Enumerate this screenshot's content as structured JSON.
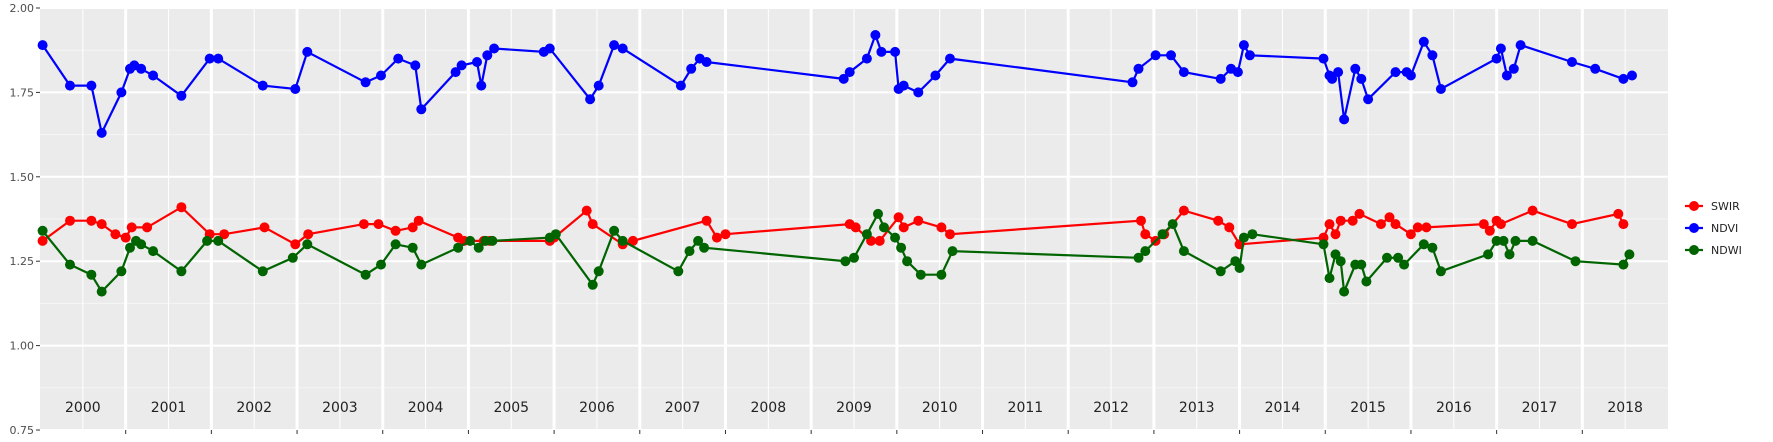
{
  "chart_data": {
    "type": "line",
    "title": "",
    "xlabel": "",
    "ylabel": "",
    "ylim": [
      0.75,
      2.0
    ],
    "yticks": [
      "0.75",
      "1.00",
      "1.25",
      "1.50",
      "1.75",
      "2.00"
    ],
    "grid": true,
    "legend_position": "right",
    "panels": [
      "2000",
      "2001",
      "2002",
      "2003",
      "2004",
      "2005",
      "2006",
      "2007",
      "2008",
      "2009",
      "2010",
      "2011",
      "2012",
      "2013",
      "2014",
      "2015",
      "2016",
      "2017",
      "2018"
    ],
    "series": [
      {
        "name": "SWIR",
        "color": "#ff0000",
        "points": [
          [
            2000.03,
            1.31
          ],
          [
            2000.35,
            1.37
          ],
          [
            2000.6,
            1.37
          ],
          [
            2000.72,
            1.36
          ],
          [
            2000.88,
            1.33
          ],
          [
            2001.0,
            1.32
          ],
          [
            2001.07,
            1.35
          ],
          [
            2001.25,
            1.35
          ],
          [
            2001.65,
            1.41
          ],
          [
            2001.98,
            1.33
          ],
          [
            2002.15,
            1.33
          ],
          [
            2002.62,
            1.35
          ],
          [
            2002.98,
            1.3
          ],
          [
            2003.13,
            1.33
          ],
          [
            2003.78,
            1.36
          ],
          [
            2003.95,
            1.36
          ],
          [
            2004.15,
            1.34
          ],
          [
            2004.35,
            1.35
          ],
          [
            2004.42,
            1.37
          ],
          [
            2004.88,
            1.32
          ],
          [
            2004.95,
            1.31
          ],
          [
            2005.18,
            1.31
          ],
          [
            2005.25,
            1.31
          ],
          [
            2005.95,
            1.31
          ],
          [
            2006.0,
            1.32
          ],
          [
            2006.38,
            1.4
          ],
          [
            2006.45,
            1.36
          ],
          [
            2006.8,
            1.3
          ],
          [
            2006.92,
            1.31
          ],
          [
            2007.78,
            1.37
          ],
          [
            2007.9,
            1.32
          ],
          [
            2008.0,
            1.33
          ],
          [
            2009.45,
            1.36
          ],
          [
            2009.52,
            1.35
          ],
          [
            2009.7,
            1.31
          ],
          [
            2009.8,
            1.31
          ],
          [
            2010.02,
            1.38
          ],
          [
            2010.08,
            1.35
          ],
          [
            2010.25,
            1.37
          ],
          [
            2010.52,
            1.35
          ],
          [
            2010.62,
            1.33
          ],
          [
            2012.85,
            1.37
          ],
          [
            2012.9,
            1.33
          ],
          [
            2013.02,
            1.31
          ],
          [
            2013.12,
            1.33
          ],
          [
            2013.35,
            1.4
          ],
          [
            2013.75,
            1.37
          ],
          [
            2013.88,
            1.35
          ],
          [
            2014.0,
            1.3
          ],
          [
            2014.98,
            1.32
          ],
          [
            2015.05,
            1.36
          ],
          [
            2015.12,
            1.33
          ],
          [
            2015.18,
            1.37
          ],
          [
            2015.32,
            1.37
          ],
          [
            2015.4,
            1.39
          ],
          [
            2015.65,
            1.36
          ],
          [
            2015.75,
            1.38
          ],
          [
            2015.82,
            1.36
          ],
          [
            2016.0,
            1.33
          ],
          [
            2016.08,
            1.35
          ],
          [
            2016.18,
            1.35
          ],
          [
            2016.85,
            1.36
          ],
          [
            2016.92,
            1.34
          ],
          [
            2017.0,
            1.37
          ],
          [
            2017.05,
            1.36
          ],
          [
            2017.42,
            1.4
          ],
          [
            2017.88,
            1.36
          ],
          [
            2018.42,
            1.39
          ],
          [
            2018.48,
            1.36
          ]
        ]
      },
      {
        "name": "NDVI",
        "color": "#0000ff",
        "points": [
          [
            2000.03,
            1.89
          ],
          [
            2000.35,
            1.77
          ],
          [
            2000.6,
            1.77
          ],
          [
            2000.72,
            1.63
          ],
          [
            2000.95,
            1.75
          ],
          [
            2001.05,
            1.82
          ],
          [
            2001.1,
            1.83
          ],
          [
            2001.18,
            1.82
          ],
          [
            2001.32,
            1.8
          ],
          [
            2001.65,
            1.74
          ],
          [
            2001.98,
            1.85
          ],
          [
            2002.08,
            1.85
          ],
          [
            2002.6,
            1.77
          ],
          [
            2002.98,
            1.76
          ],
          [
            2003.12,
            1.87
          ],
          [
            2003.8,
            1.78
          ],
          [
            2003.98,
            1.8
          ],
          [
            2004.18,
            1.85
          ],
          [
            2004.38,
            1.83
          ],
          [
            2004.45,
            1.7
          ],
          [
            2004.85,
            1.81
          ],
          [
            2004.92,
            1.83
          ],
          [
            2005.1,
            1.84
          ],
          [
            2005.15,
            1.77
          ],
          [
            2005.22,
            1.86
          ],
          [
            2005.3,
            1.88
          ],
          [
            2005.88,
            1.87
          ],
          [
            2005.95,
            1.88
          ],
          [
            2006.42,
            1.73
          ],
          [
            2006.52,
            1.77
          ],
          [
            2006.7,
            1.89
          ],
          [
            2006.8,
            1.88
          ],
          [
            2007.48,
            1.77
          ],
          [
            2007.6,
            1.82
          ],
          [
            2007.7,
            1.85
          ],
          [
            2007.78,
            1.84
          ],
          [
            2009.38,
            1.79
          ],
          [
            2009.45,
            1.81
          ],
          [
            2009.65,
            1.85
          ],
          [
            2009.75,
            1.92
          ],
          [
            2009.82,
            1.87
          ],
          [
            2009.98,
            1.87
          ],
          [
            2010.02,
            1.76
          ],
          [
            2010.08,
            1.77
          ],
          [
            2010.25,
            1.75
          ],
          [
            2010.45,
            1.8
          ],
          [
            2010.62,
            1.85
          ],
          [
            2012.75,
            1.78
          ],
          [
            2012.82,
            1.82
          ],
          [
            2013.02,
            1.86
          ],
          [
            2013.2,
            1.86
          ],
          [
            2013.35,
            1.81
          ],
          [
            2013.78,
            1.79
          ],
          [
            2013.9,
            1.82
          ],
          [
            2013.98,
            1.81
          ],
          [
            2014.05,
            1.89
          ],
          [
            2014.12,
            1.86
          ],
          [
            2014.98,
            1.85
          ],
          [
            2015.05,
            1.8
          ],
          [
            2015.08,
            1.79
          ],
          [
            2015.15,
            1.81
          ],
          [
            2015.22,
            1.67
          ],
          [
            2015.35,
            1.82
          ],
          [
            2015.42,
            1.79
          ],
          [
            2015.5,
            1.73
          ],
          [
            2015.82,
            1.81
          ],
          [
            2015.95,
            1.81
          ],
          [
            2016.0,
            1.8
          ],
          [
            2016.15,
            1.9
          ],
          [
            2016.25,
            1.86
          ],
          [
            2016.35,
            1.76
          ],
          [
            2017.0,
            1.85
          ],
          [
            2017.05,
            1.88
          ],
          [
            2017.12,
            1.8
          ],
          [
            2017.2,
            1.82
          ],
          [
            2017.28,
            1.89
          ],
          [
            2017.88,
            1.84
          ],
          [
            2018.15,
            1.82
          ],
          [
            2018.48,
            1.79
          ],
          [
            2018.58,
            1.8
          ]
        ]
      },
      {
        "name": "NDWI",
        "color": "#006400",
        "points": [
          [
            2000.03,
            1.34
          ],
          [
            2000.35,
            1.24
          ],
          [
            2000.6,
            1.21
          ],
          [
            2000.72,
            1.16
          ],
          [
            2000.95,
            1.22
          ],
          [
            2001.05,
            1.29
          ],
          [
            2001.12,
            1.31
          ],
          [
            2001.18,
            1.3
          ],
          [
            2001.32,
            1.28
          ],
          [
            2001.65,
            1.22
          ],
          [
            2001.95,
            1.31
          ],
          [
            2002.08,
            1.31
          ],
          [
            2002.6,
            1.22
          ],
          [
            2002.95,
            1.26
          ],
          [
            2003.12,
            1.3
          ],
          [
            2003.8,
            1.21
          ],
          [
            2003.98,
            1.24
          ],
          [
            2004.15,
            1.3
          ],
          [
            2004.35,
            1.29
          ],
          [
            2004.45,
            1.24
          ],
          [
            2004.88,
            1.29
          ],
          [
            2005.02,
            1.31
          ],
          [
            2005.12,
            1.29
          ],
          [
            2005.2,
            1.31
          ],
          [
            2005.28,
            1.31
          ],
          [
            2005.95,
            1.32
          ],
          [
            2006.02,
            1.33
          ],
          [
            2006.45,
            1.18
          ],
          [
            2006.52,
            1.22
          ],
          [
            2006.7,
            1.34
          ],
          [
            2006.8,
            1.31
          ],
          [
            2007.45,
            1.22
          ],
          [
            2007.58,
            1.28
          ],
          [
            2007.68,
            1.31
          ],
          [
            2007.75,
            1.29
          ],
          [
            2009.4,
            1.25
          ],
          [
            2009.5,
            1.26
          ],
          [
            2009.65,
            1.33
          ],
          [
            2009.78,
            1.39
          ],
          [
            2009.85,
            1.35
          ],
          [
            2009.98,
            1.32
          ],
          [
            2010.05,
            1.29
          ],
          [
            2010.12,
            1.25
          ],
          [
            2010.28,
            1.21
          ],
          [
            2010.52,
            1.21
          ],
          [
            2010.65,
            1.28
          ],
          [
            2012.82,
            1.26
          ],
          [
            2012.9,
            1.28
          ],
          [
            2013.1,
            1.33
          ],
          [
            2013.22,
            1.36
          ],
          [
            2013.35,
            1.28
          ],
          [
            2013.78,
            1.22
          ],
          [
            2013.95,
            1.25
          ],
          [
            2014.0,
            1.23
          ],
          [
            2014.05,
            1.32
          ],
          [
            2014.15,
            1.33
          ],
          [
            2014.98,
            1.3
          ],
          [
            2015.05,
            1.2
          ],
          [
            2015.12,
            1.27
          ],
          [
            2015.18,
            1.25
          ],
          [
            2015.22,
            1.16
          ],
          [
            2015.35,
            1.24
          ],
          [
            2015.42,
            1.24
          ],
          [
            2015.48,
            1.19
          ],
          [
            2015.72,
            1.26
          ],
          [
            2015.85,
            1.26
          ],
          [
            2015.92,
            1.24
          ],
          [
            2016.15,
            1.3
          ],
          [
            2016.25,
            1.29
          ],
          [
            2016.35,
            1.22
          ],
          [
            2016.9,
            1.27
          ],
          [
            2017.0,
            1.31
          ],
          [
            2017.08,
            1.31
          ],
          [
            2017.15,
            1.27
          ],
          [
            2017.22,
            1.31
          ],
          [
            2017.42,
            1.31
          ],
          [
            2017.92,
            1.25
          ],
          [
            2018.48,
            1.24
          ],
          [
            2018.55,
            1.27
          ]
        ]
      }
    ]
  }
}
